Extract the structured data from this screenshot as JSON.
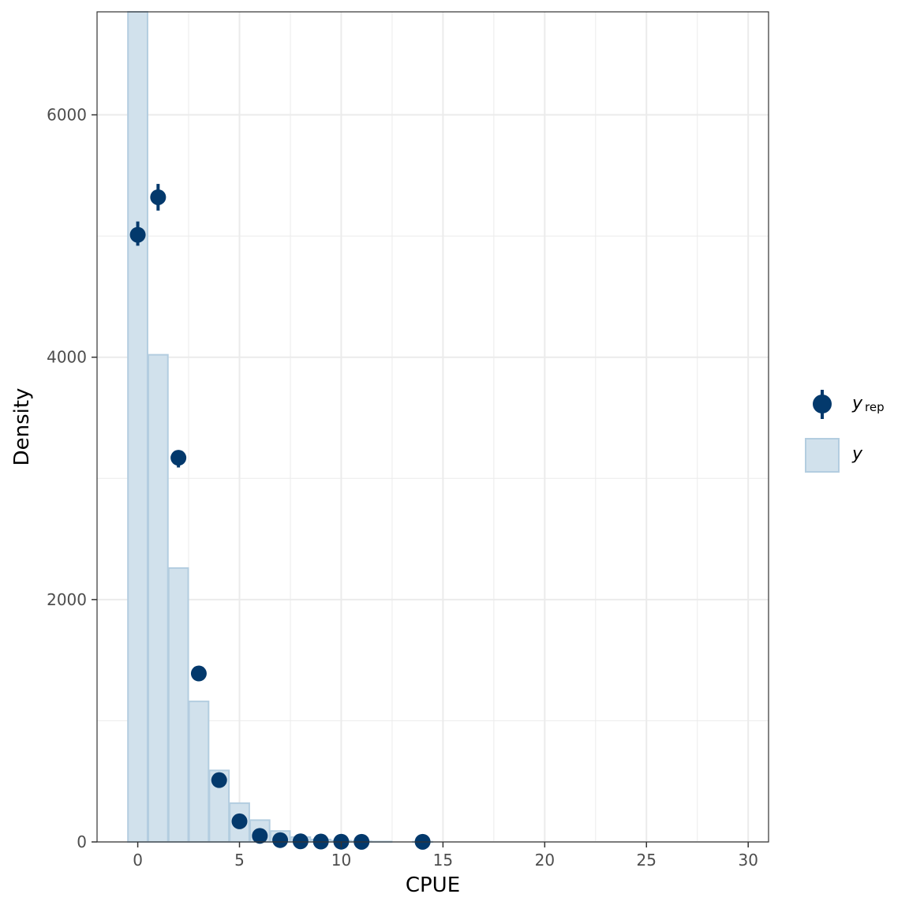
{
  "chart_data": {
    "type": "bar",
    "xlabel": "CPUE",
    "ylabel": "Density",
    "xlim": [
      -2,
      31
    ],
    "ylim": [
      0,
      6850
    ],
    "x_ticks": [
      0,
      5,
      10,
      15,
      20,
      25,
      30
    ],
    "x_tick_labels": [
      "0",
      "5",
      "10",
      "15",
      "20",
      "25",
      "30"
    ],
    "y_ticks": [
      0,
      2000,
      4000,
      6000
    ],
    "y_tick_labels": [
      "0",
      "2000",
      "4000",
      "6000"
    ],
    "grid": true,
    "legend_position": "right",
    "colors": {
      "bar_fill": "#d1e1ec",
      "bar_stroke": "#b3cde0",
      "point": "#03396c",
      "grid": "#ebebeb",
      "panel_border": "#333333"
    },
    "series": [
      {
        "name": "y",
        "kind": "bar",
        "x": [
          0,
          1,
          2,
          3,
          4,
          5,
          6,
          7,
          8,
          9,
          10,
          11,
          12,
          14
        ],
        "values": [
          6900,
          4020,
          2260,
          1160,
          590,
          320,
          180,
          90,
          40,
          20,
          10,
          5,
          3,
          2
        ]
      },
      {
        "name": "y_rep",
        "kind": "pointrange",
        "x": [
          0,
          1,
          2,
          3,
          4,
          5,
          6,
          7,
          8,
          9,
          10,
          11,
          14
        ],
        "values": [
          5010,
          5320,
          3170,
          1390,
          510,
          170,
          50,
          15,
          5,
          3,
          2,
          1,
          1
        ],
        "lower": [
          4920,
          5210,
          3090,
          1370,
          490,
          160,
          45,
          12,
          4,
          2,
          1,
          0,
          0
        ],
        "upper": [
          5120,
          5430,
          3230,
          1410,
          530,
          180,
          55,
          18,
          6,
          4,
          3,
          2,
          2
        ]
      }
    ],
    "legend": {
      "yrep_main": "y",
      "yrep_sub": "rep",
      "y_label": "y"
    }
  }
}
